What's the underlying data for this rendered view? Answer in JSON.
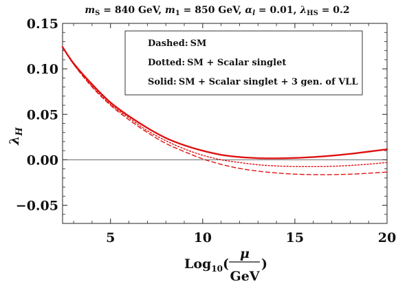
{
  "chart_data": {
    "type": "line",
    "title": "m_S = 840 GeV, m_1 = 850 GeV, α_l = 0.01, λ_HS = 0.2",
    "title_parts": {
      "ms": "m",
      "ms_sub": "S",
      "ms_val": " = 840 GeV, ",
      "m1": "m",
      "m1_sub": "1",
      "m1_val": " = 850 GeV, ",
      "al": "α",
      "al_sub": "l",
      "al_val": " = 0.01, ",
      "lhs": "λ",
      "lhs_sub": "HS",
      "lhs_val": " = 0.2"
    },
    "ylabel": "λ_H",
    "ylabel_main": "λ",
    "ylabel_sub": "H",
    "xlabel": "Log10(μ/GeV)",
    "xlabel_parts": {
      "log": "Log",
      "log_sub": "10",
      "paren_open": "(",
      "num": "μ",
      "den": "GeV",
      "paren_close": ")"
    },
    "xlim": [
      2.4,
      20
    ],
    "ylim": [
      -0.07,
      0.15
    ],
    "x_ticks": [
      5,
      10,
      15,
      20
    ],
    "x_tick_labels": [
      "5",
      "10",
      "15",
      "20"
    ],
    "y_ticks": [
      0.15,
      0.1,
      0.05,
      0.0,
      -0.05
    ],
    "y_tick_labels": [
      "0.15",
      "0.10",
      "0.05",
      "0.00",
      "−0.05"
    ],
    "zero_line": true,
    "grid": false,
    "legend": {
      "placement": "top-center",
      "entries": [
        {
          "key": "Dashed",
          "sep": ":",
          "value": "SM"
        },
        {
          "key": "Dotted",
          "sep": ":",
          "value": "SM + Scalar singlet"
        },
        {
          "key": "Solid",
          "sep": ":",
          "value": "SM + Scalar singlet + 3 gen. of VLL"
        }
      ]
    },
    "colors": {
      "series": "#dd1111",
      "axis": "#222222",
      "zero_line": "#555555"
    },
    "series": [
      {
        "name": "SM",
        "style": "dashed",
        "x": [
          2.4,
          3,
          4,
          5,
          6,
          7,
          8,
          9,
          10,
          11,
          12,
          13,
          14,
          15,
          16,
          17,
          18,
          19,
          20
        ],
        "y": [
          0.124,
          0.105,
          0.08,
          0.06,
          0.044,
          0.03,
          0.018,
          0.009,
          0.001,
          -0.005,
          -0.0095,
          -0.0125,
          -0.0145,
          -0.0158,
          -0.0163,
          -0.0163,
          -0.0158,
          -0.0148,
          -0.0135
        ]
      },
      {
        "name": "SM + Scalar singlet",
        "style": "dotted",
        "x": [
          2.4,
          3,
          4,
          5,
          6,
          7,
          8,
          9,
          10,
          11,
          12,
          13,
          14,
          15,
          16,
          17,
          18,
          19,
          20
        ],
        "y": [
          0.124,
          0.105,
          0.081,
          0.061,
          0.046,
          0.032,
          0.021,
          0.012,
          0.005,
          0.0,
          -0.003,
          -0.0055,
          -0.0068,
          -0.0074,
          -0.0075,
          -0.0072,
          -0.0062,
          -0.0048,
          -0.003
        ]
      },
      {
        "name": "SM + Scalar singlet + 3 gen. of VLL",
        "style": "solid",
        "x": [
          2.4,
          3,
          4,
          5,
          6,
          7,
          8,
          9,
          10,
          11,
          12,
          13,
          14,
          15,
          16,
          17,
          18,
          19,
          20
        ],
        "y": [
          0.124,
          0.106,
          0.083,
          0.063,
          0.048,
          0.035,
          0.024,
          0.016,
          0.01,
          0.0055,
          0.003,
          0.0018,
          0.0016,
          0.002,
          0.003,
          0.0045,
          0.0065,
          0.009,
          0.0115
        ]
      }
    ]
  }
}
